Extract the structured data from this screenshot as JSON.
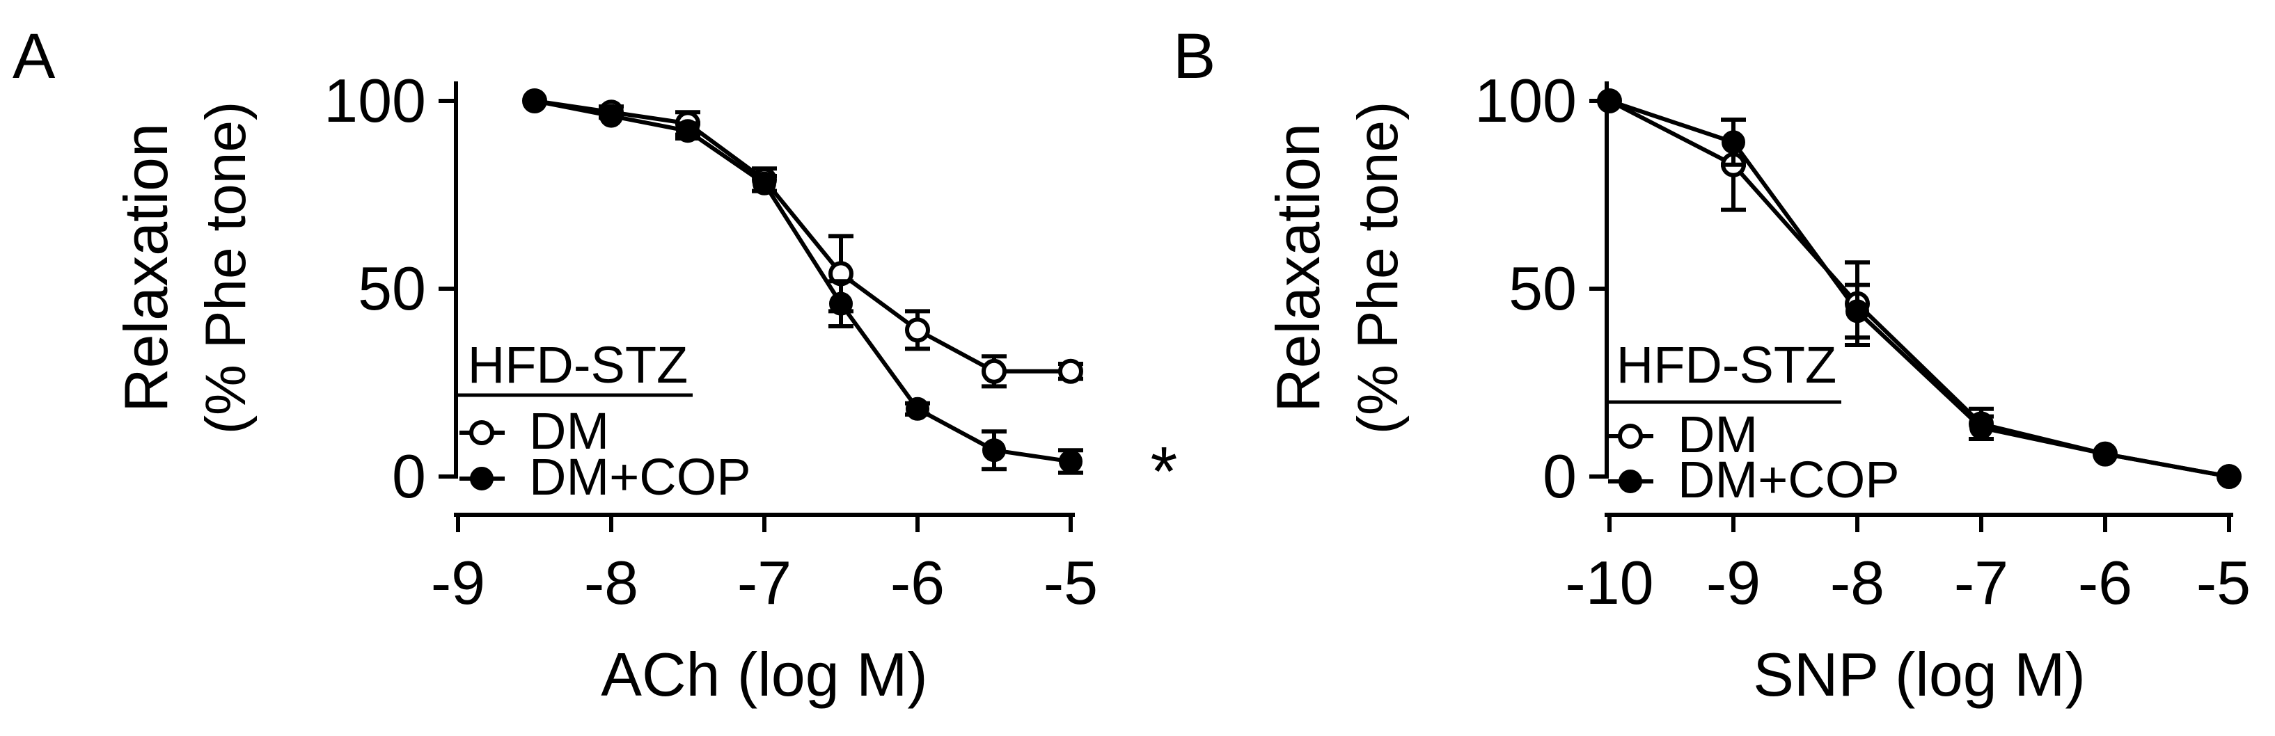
{
  "colors": {
    "ink": "#000000",
    "background": "#ffffff",
    "open_fill": "#ffffff"
  },
  "chart_data": [
    {
      "panel_label": "A",
      "type": "line",
      "ylabel_line1": "Relaxation",
      "ylabel_line2": "(% Phe tone)",
      "xlabel": "ACh (log M)",
      "xlim": [
        -9,
        -5
      ],
      "ylim": [
        0,
        100
      ],
      "x_ticks": [
        -9,
        -8,
        -7,
        -6,
        -5
      ],
      "x_tick_labels": [
        "-9",
        "-8",
        "-7",
        "-6",
        "-5"
      ],
      "y_ticks": [
        0,
        50,
        100
      ],
      "y_tick_labels": [
        "0",
        "50",
        "100"
      ],
      "legend_title": "HFD-STZ",
      "significance": "*",
      "series": [
        {
          "name": "DM",
          "marker": "open-circle",
          "x": [
            -8.5,
            -8,
            -7.5,
            -7,
            -6.5,
            -6,
            -5.5,
            -5
          ],
          "y": [
            100,
            97,
            94,
            79,
            54,
            39,
            28,
            28
          ],
          "err": [
            1,
            1.5,
            3,
            3,
            10,
            5,
            4,
            2
          ]
        },
        {
          "name": "DM+COP",
          "marker": "filled-circle",
          "x": [
            -8.5,
            -8,
            -7.5,
            -7,
            -6.5,
            -6,
            -5.5,
            -5
          ],
          "y": [
            100,
            96,
            92,
            78,
            46,
            18,
            7,
            4
          ],
          "err": [
            1,
            1,
            2,
            2,
            6,
            1.5,
            5,
            3
          ]
        }
      ]
    },
    {
      "panel_label": "B",
      "type": "line",
      "ylabel_line1": "Relaxation",
      "ylabel_line2": "(% Phe tone)",
      "xlabel": "SNP (log M)",
      "xlim": [
        -10,
        -5
      ],
      "ylim": [
        0,
        100
      ],
      "x_ticks": [
        -10,
        -9,
        -8,
        -7,
        -6,
        -5
      ],
      "x_tick_labels": [
        "-10",
        "-9",
        "-8",
        "-7",
        "-6",
        "-5"
      ],
      "y_ticks": [
        0,
        50,
        100
      ],
      "y_tick_labels": [
        "0",
        "50",
        "100"
      ],
      "legend_title": "HFD-STZ",
      "significance": "",
      "series": [
        {
          "name": "DM",
          "marker": "open-circle",
          "x": [
            -10,
            -9,
            -8,
            -7,
            -6,
            -5
          ],
          "y": [
            100,
            83,
            46,
            14,
            6,
            0
          ],
          "err": [
            0.5,
            12,
            11,
            4,
            1,
            0.5
          ]
        },
        {
          "name": "DM+COP",
          "marker": "filled-circle",
          "x": [
            -10,
            -9,
            -8,
            -7,
            -6,
            -5
          ],
          "y": [
            100,
            89,
            44,
            13,
            6,
            0
          ],
          "err": [
            0.5,
            6,
            7,
            3,
            1,
            0.5
          ]
        }
      ]
    }
  ]
}
